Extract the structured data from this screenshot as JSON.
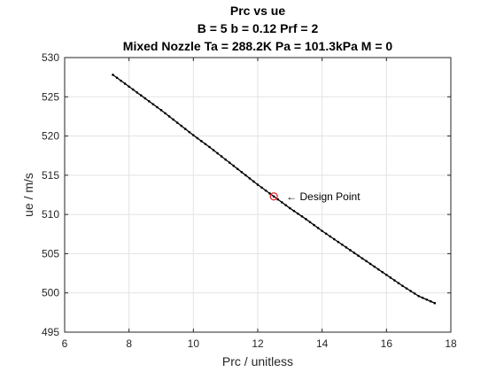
{
  "chart_data": {
    "type": "line",
    "title": [
      "Prc vs ue",
      "B = 5 b = 0.12 Prf = 2",
      "Mixed Nozzle Ta = 288.2K Pa = 101.3kPa M = 0"
    ],
    "xlabel": "Prc / unitless",
    "ylabel": "ue / m/s",
    "xlim": [
      6,
      18
    ],
    "ylim": [
      495,
      530
    ],
    "xticks": [
      6,
      8,
      10,
      12,
      14,
      16,
      18
    ],
    "yticks": [
      495,
      500,
      505,
      510,
      515,
      520,
      525,
      530
    ],
    "grid": true,
    "series": [
      {
        "color": "#000000",
        "marker": "dot",
        "x": [
          7.5,
          8.0,
          8.5,
          9.0,
          9.5,
          10.0,
          10.5,
          11.0,
          11.5,
          12.0,
          12.5,
          13.0,
          13.5,
          14.0,
          14.5,
          15.0,
          15.5,
          16.0,
          16.5,
          17.0,
          17.5
        ],
        "y": [
          527.8,
          526.3,
          524.8,
          523.3,
          521.7,
          520.1,
          518.6,
          517.0,
          515.4,
          513.8,
          512.3,
          510.8,
          509.4,
          507.9,
          506.5,
          505.1,
          503.7,
          502.3,
          500.9,
          499.6,
          498.7
        ]
      }
    ],
    "annotations": [
      {
        "text": "← Design Point",
        "x": 12.5,
        "y": 512.3,
        "marker": "circle",
        "color": "#e8232a"
      }
    ]
  }
}
